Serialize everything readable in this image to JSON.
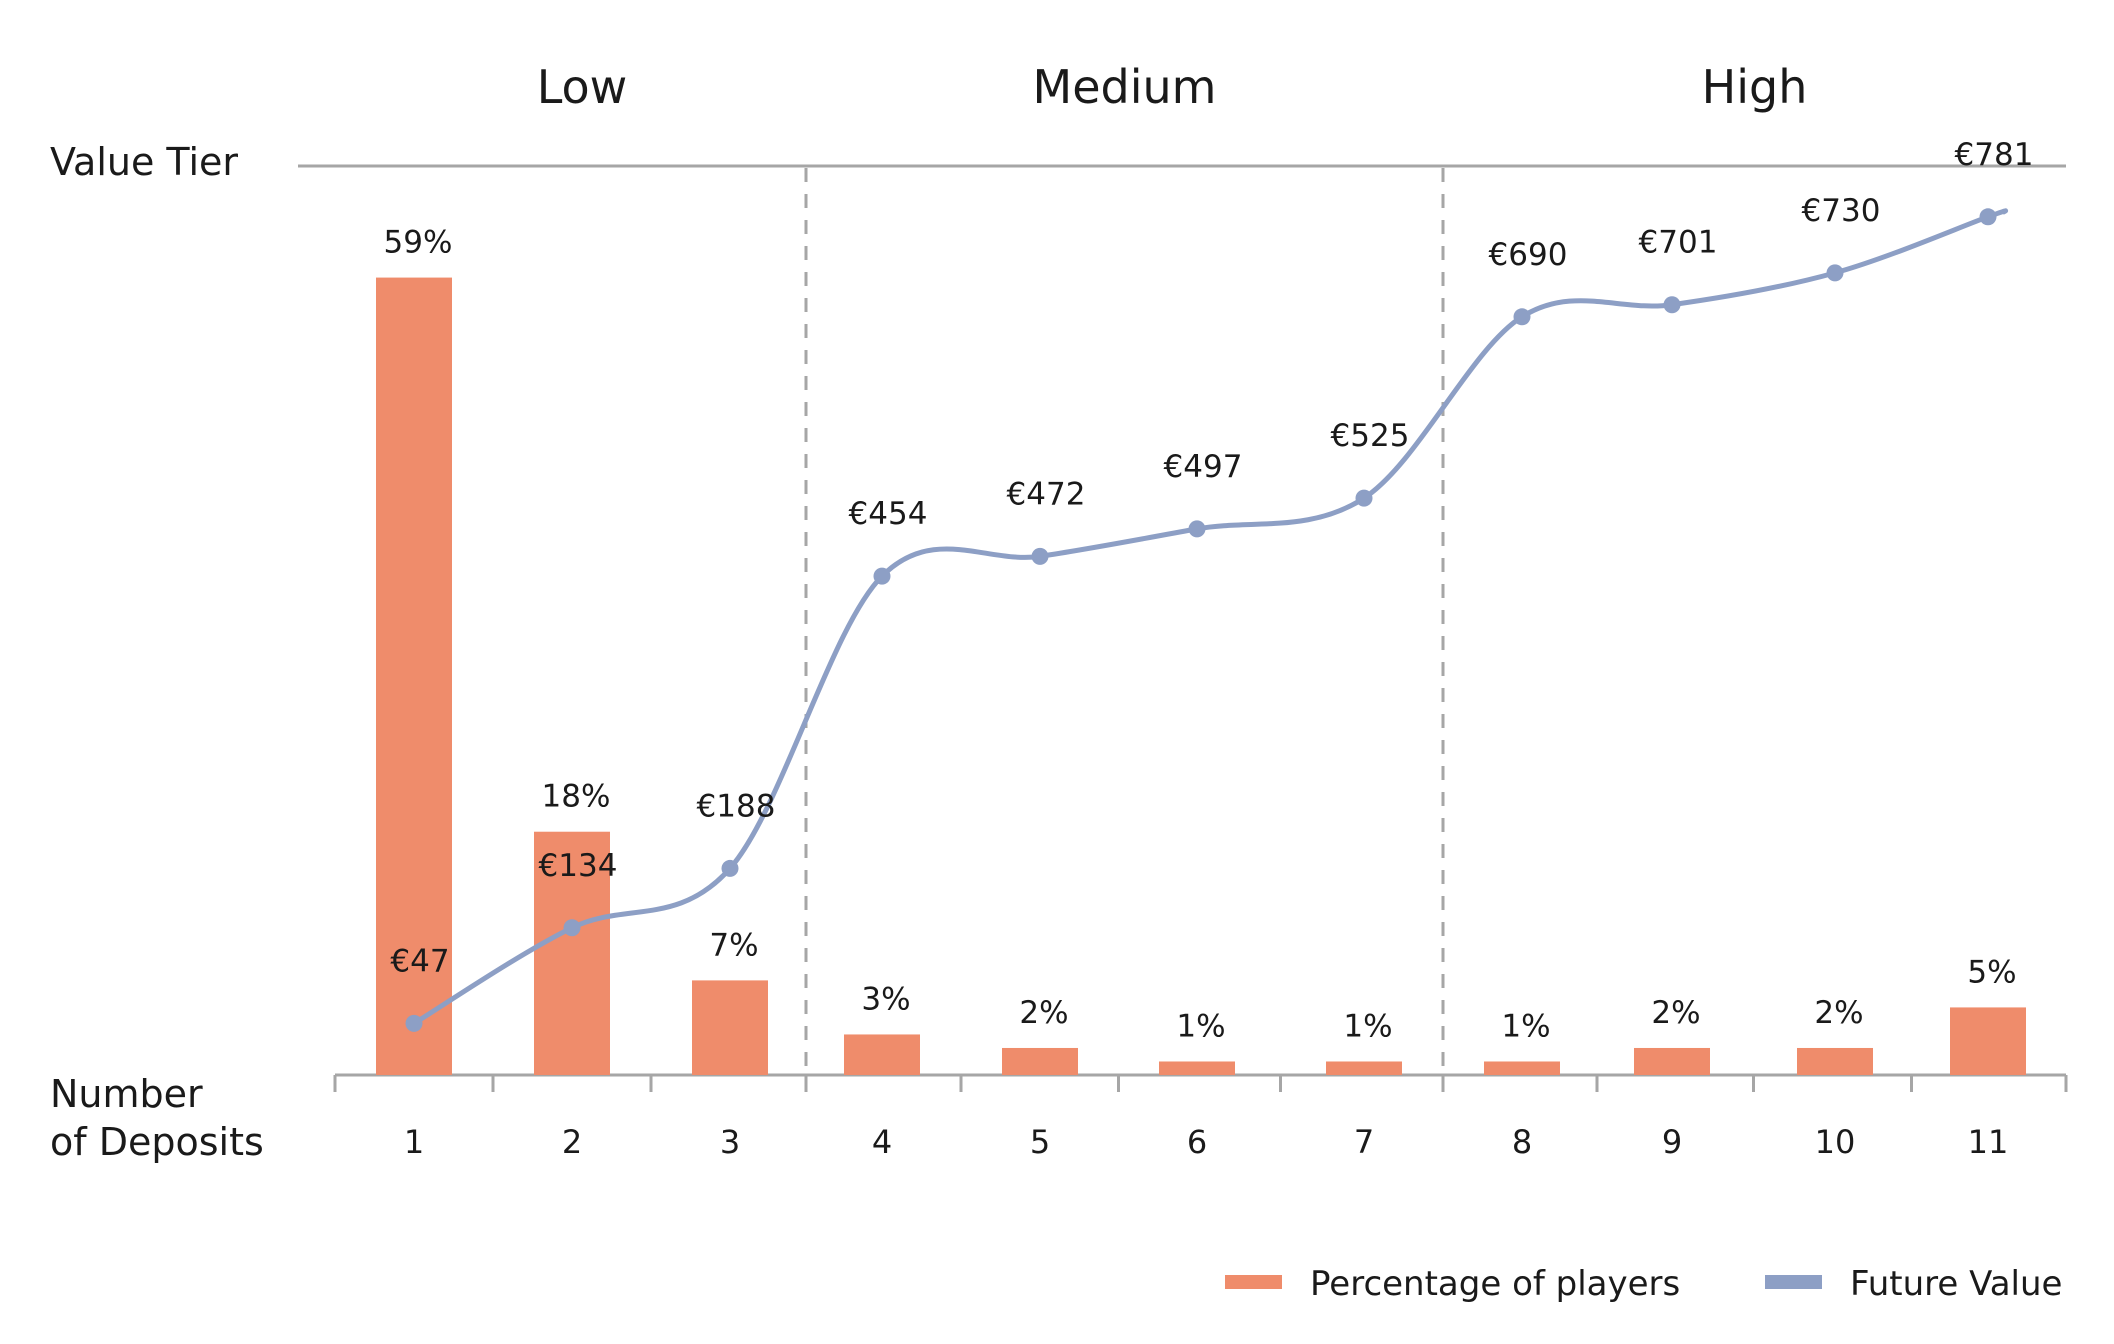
{
  "chart_data": {
    "type": "bar+line",
    "tier_axis_label": "Value Tier",
    "x_axis_label_line1": "Number",
    "x_axis_label_line2": "of Deposits",
    "tiers": [
      {
        "label": "Low",
        "start_index": 0,
        "end_index": 2
      },
      {
        "label": "Medium",
        "start_index": 3,
        "end_index": 6
      },
      {
        "label": "High",
        "start_index": 7,
        "end_index": 10
      }
    ],
    "categories": [
      "1",
      "2",
      "3",
      "4",
      "5",
      "6",
      "7",
      "8",
      "9",
      "10",
      "11"
    ],
    "series": [
      {
        "name": "Percentage of players",
        "type": "bar",
        "color": "#ef8c6b",
        "values": [
          59,
          18,
          7,
          3,
          2,
          1,
          1,
          1,
          2,
          2,
          5
        ],
        "value_labels": [
          "59%",
          "18%",
          "7%",
          "3%",
          "2%",
          "1%",
          "1%",
          "1%",
          "2%",
          "2%",
          "5%"
        ],
        "ylim": [
          0,
          64
        ]
      },
      {
        "name": "Future Value",
        "type": "line",
        "color": "#8d9fc5",
        "values": [
          47,
          134,
          188,
          454,
          472,
          497,
          525,
          690,
          701,
          730,
          781
        ],
        "value_labels": [
          "€47",
          "€134",
          "€188",
          "€454",
          "€472",
          "€497",
          "€525",
          "€690",
          "€701",
          "€730",
          "€781"
        ],
        "ylim": [
          0,
          860
        ]
      }
    ],
    "legend": {
      "position": "bottom-right",
      "items": [
        {
          "label": "Percentage of players",
          "color": "#ef8c6b"
        },
        {
          "label": "Future Value",
          "color": "#8d9fc5"
        }
      ]
    },
    "colors": {
      "axis": "#a6a6a6",
      "divider": "#a6a6a6",
      "text": "#1a1a1a"
    }
  }
}
